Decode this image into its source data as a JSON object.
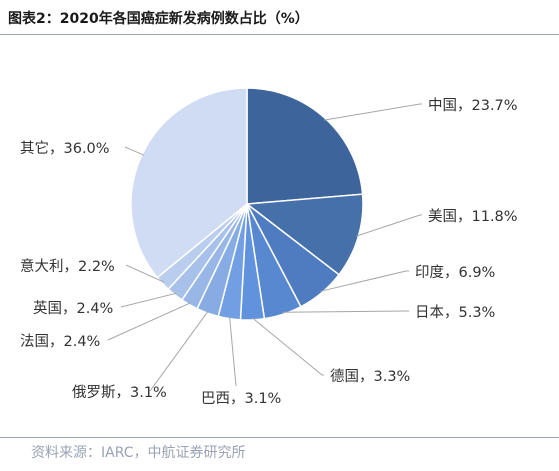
{
  "figure": {
    "title": "图表2：2020年各国癌症新发病例数占比（%）",
    "source": "资料来源：IARC，中航证券研究所"
  },
  "chart_data": {
    "type": "pie",
    "title": "图表2：2020年各国癌症新发病例数占比（%）",
    "legend": "none",
    "start": "12 o'clock",
    "direction": "clockwise",
    "slices": [
      {
        "label": "中国，23.7%",
        "category": "中国",
        "value": 23.7,
        "color": "#3e659b"
      },
      {
        "label": "美国，11.8%",
        "category": "美国",
        "value": 11.8,
        "color": "#4670aa"
      },
      {
        "label": "印度，6.9%",
        "category": "印度",
        "value": 6.9,
        "color": "#4f7cc0"
      },
      {
        "label": "日本，5.3%",
        "category": "日本",
        "value": 5.3,
        "color": "#5888d0"
      },
      {
        "label": "德国，3.3%",
        "category": "德国",
        "value": 3.3,
        "color": "#6192dd"
      },
      {
        "label": "巴西，3.1%",
        "category": "巴西",
        "value": 3.1,
        "color": "#729fe3"
      },
      {
        "label": "俄罗斯，3.1%",
        "category": "俄罗斯",
        "value": 3.1,
        "color": "#87abe3"
      },
      {
        "label": "法国，2.4%",
        "category": "法国",
        "value": 2.4,
        "color": "#99b7e6"
      },
      {
        "label": "英国，2.4%",
        "category": "英国",
        "value": 2.4,
        "color": "#a8c1ea"
      },
      {
        "label": "意大利，2.2%",
        "category": "意大利",
        "value": 2.2,
        "color": "#b9cdee"
      },
      {
        "label": "其它，36.0%",
        "category": "其它",
        "value": 36.0,
        "color": "#d0dcf3"
      }
    ]
  }
}
